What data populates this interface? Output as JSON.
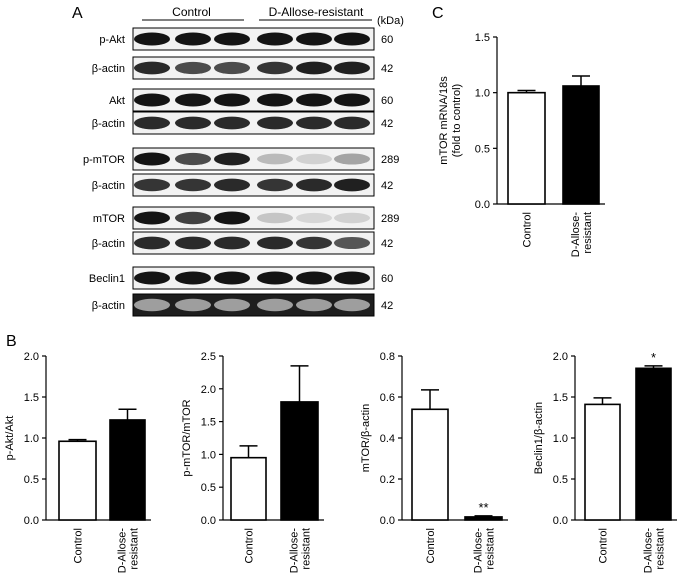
{
  "panel_labels": [
    "A",
    "B",
    "C"
  ],
  "western_blot": {
    "groups": [
      "Control",
      "D-Allose-resistant"
    ],
    "unit_header": "(kDa)",
    "lanes_per_group": 3,
    "rows": [
      {
        "label": "p-Akt",
        "kda": "60",
        "intensities": [
          1.0,
          1.0,
          1.0,
          1.0,
          1.0,
          1.0
        ]
      },
      {
        "label": "β-actin",
        "kda": "42",
        "intensities": [
          0.9,
          0.75,
          0.75,
          0.85,
          0.95,
          0.95
        ]
      },
      {
        "label": "Akt",
        "kda": "60",
        "intensities": [
          1.0,
          1.0,
          1.0,
          1.0,
          1.0,
          1.0
        ]
      },
      {
        "label": "β-actin",
        "kda": "42",
        "intensities": [
          0.9,
          0.9,
          0.9,
          0.9,
          0.9,
          0.9
        ]
      },
      {
        "label": "p-mTOR",
        "kda": "289",
        "intensities": [
          1.0,
          0.75,
          0.95,
          0.25,
          0.15,
          0.35
        ]
      },
      {
        "label": "β-actin",
        "kda": "42",
        "intensities": [
          0.85,
          0.85,
          0.9,
          0.85,
          0.9,
          0.95
        ]
      },
      {
        "label": "mTOR",
        "kda": "289",
        "intensities": [
          1.0,
          0.8,
          1.0,
          0.2,
          0.12,
          0.15
        ]
      },
      {
        "label": "β-actin",
        "kda": "42",
        "intensities": [
          0.9,
          0.9,
          0.9,
          0.9,
          0.85,
          0.7
        ]
      },
      {
        "label": "Beclin1",
        "kda": "60",
        "intensities": [
          1.0,
          1.0,
          1.0,
          1.0,
          1.0,
          1.0
        ]
      },
      {
        "label": "β-actin",
        "kda": "42",
        "intensities": [
          0.85,
          0.85,
          0.85,
          0.85,
          0.85,
          0.85
        ],
        "dark_background": true
      }
    ]
  },
  "chart_data": [
    {
      "panel": "B",
      "type": "bar",
      "categories": [
        "Control",
        "D-Allose-resistant"
      ],
      "category_lines": [
        [
          "Control"
        ],
        [
          "D-Allose-",
          "resistant"
        ]
      ],
      "values": [
        0.96,
        1.22
      ],
      "errors": [
        0.02,
        0.13
      ],
      "fills": [
        "#ffffff",
        "#000000"
      ],
      "ylabel": "p-Akt/Akt",
      "ylim": [
        0,
        2.0
      ],
      "yticks": [
        "0.0",
        "0.5",
        "1.0",
        "1.5",
        "2.0"
      ],
      "annotations": [
        "",
        ""
      ]
    },
    {
      "panel": "B",
      "type": "bar",
      "categories": [
        "Control",
        "D-Allose-resistant"
      ],
      "category_lines": [
        [
          "Control"
        ],
        [
          "D-Allose-",
          "resistant"
        ]
      ],
      "values": [
        0.95,
        1.8
      ],
      "errors": [
        0.18,
        0.55
      ],
      "fills": [
        "#ffffff",
        "#000000"
      ],
      "ylabel": "p-mTOR/mTOR",
      "ylim": [
        0,
        2.5
      ],
      "yticks": [
        "0.0",
        "0.5",
        "1.0",
        "1.5",
        "2.0",
        "2.5"
      ],
      "annotations": [
        "",
        ""
      ]
    },
    {
      "panel": "B",
      "type": "bar",
      "categories": [
        "Control",
        "D-Allose-resistant"
      ],
      "category_lines": [
        [
          "Control"
        ],
        [
          "D-Allose-",
          "resistant"
        ]
      ],
      "values": [
        0.54,
        0.015
      ],
      "errors": [
        0.095,
        0.005
      ],
      "fills": [
        "#ffffff",
        "#000000"
      ],
      "ylabel": "mTOR/β-actin",
      "ylim": [
        0,
        0.8
      ],
      "yticks": [
        "0.0",
        "0.2",
        "0.4",
        "0.6",
        "0.8"
      ],
      "annotations": [
        "",
        "**"
      ]
    },
    {
      "panel": "B",
      "type": "bar",
      "categories": [
        "Control",
        "D-Allose-resistant"
      ],
      "category_lines": [
        [
          "Control"
        ],
        [
          "D-Allose-",
          "resistant"
        ]
      ],
      "values": [
        1.41,
        1.85
      ],
      "errors": [
        0.08,
        0.03
      ],
      "fills": [
        "#ffffff",
        "#000000"
      ],
      "ylabel": "Beclin1/β-actin",
      "ylim": [
        0,
        2.0
      ],
      "yticks": [
        "0.0",
        "0.5",
        "1.0",
        "1.5",
        "2.0"
      ],
      "annotations": [
        "",
        "*"
      ]
    },
    {
      "panel": "C",
      "type": "bar",
      "categories": [
        "Control",
        "D-Allose-resistant"
      ],
      "category_lines": [
        [
          "Control"
        ],
        [
          "D-Allose-",
          "resistant"
        ]
      ],
      "values": [
        1.0,
        1.06
      ],
      "errors": [
        0.02,
        0.09
      ],
      "fills": [
        "#ffffff",
        "#000000"
      ],
      "ylabel_lines": [
        "mTOR mRNA/18s",
        "(fold to control)"
      ],
      "ylim": [
        0,
        1.5
      ],
      "yticks": [
        "0.0",
        "0.5",
        "1.0",
        "1.5"
      ],
      "annotations": [
        "",
        ""
      ]
    }
  ]
}
